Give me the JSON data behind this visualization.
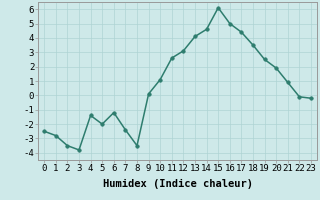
{
  "x": [
    0,
    1,
    2,
    3,
    4,
    5,
    6,
    7,
    8,
    9,
    10,
    11,
    12,
    13,
    14,
    15,
    16,
    17,
    18,
    19,
    20,
    21,
    22,
    23
  ],
  "y": [
    -2.5,
    -2.8,
    -3.5,
    -3.8,
    -1.4,
    -2.0,
    -1.2,
    -2.4,
    -3.5,
    0.1,
    1.1,
    2.6,
    3.1,
    4.1,
    4.6,
    6.1,
    5.0,
    4.4,
    3.5,
    2.5,
    1.9,
    0.9,
    -0.1,
    -0.2
  ],
  "line_color": "#2e7d6e",
  "marker": "o",
  "marker_size": 2.5,
  "line_width": 1.1,
  "xlabel": "Humidex (Indice chaleur)",
  "xlim": [
    -0.5,
    23.5
  ],
  "ylim": [
    -4.5,
    6.5
  ],
  "yticks": [
    -4,
    -3,
    -2,
    -1,
    0,
    1,
    2,
    3,
    4,
    5,
    6
  ],
  "xticks": [
    0,
    1,
    2,
    3,
    4,
    5,
    6,
    7,
    8,
    9,
    10,
    11,
    12,
    13,
    14,
    15,
    16,
    17,
    18,
    19,
    20,
    21,
    22,
    23
  ],
  "background_color": "#cee9e9",
  "grid_color": "#afd4d4",
  "xlabel_fontsize": 7.5,
  "tick_fontsize": 6.5
}
